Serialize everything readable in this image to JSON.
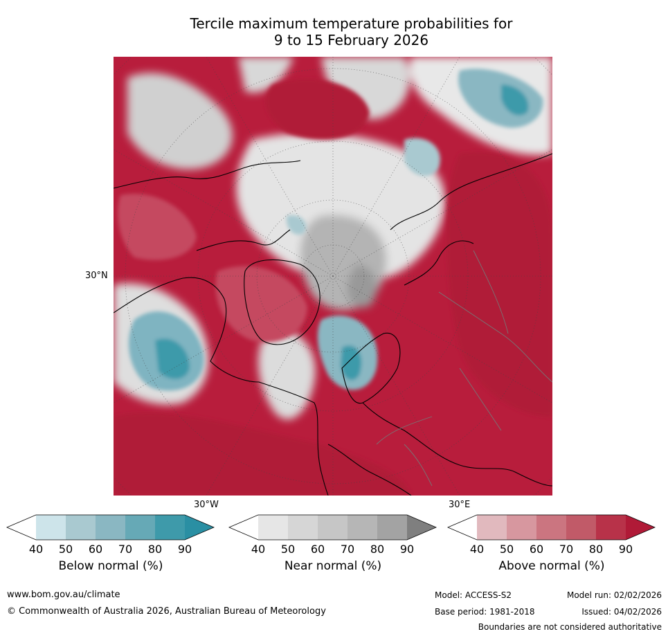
{
  "title_line1": "Tercile maximum temperature probabilities for",
  "title_line2": "9 to 15 February 2026",
  "map": {
    "lat_label": "30°N",
    "lon_label_left": "30°W",
    "lon_label_right": "30°E"
  },
  "colorbars": [
    {
      "label": "Below normal (%)",
      "ticks": [
        "40",
        "50",
        "60",
        "70",
        "80",
        "90"
      ],
      "colors": [
        "#ffffff",
        "#cde4ea",
        "#a9c9d0",
        "#8ab7c2",
        "#66a9b6",
        "#3e9aaa",
        "#2a8fa3"
      ]
    },
    {
      "label": "Near normal (%)",
      "ticks": [
        "40",
        "50",
        "60",
        "70",
        "80",
        "90"
      ],
      "colors": [
        "#ffffff",
        "#e6e6e6",
        "#d6d6d6",
        "#c6c6c6",
        "#b6b6b6",
        "#a3a3a3",
        "#7f7f7f"
      ]
    },
    {
      "label": "Above normal (%)",
      "ticks": [
        "40",
        "50",
        "60",
        "70",
        "80",
        "90"
      ],
      "colors": [
        "#ffffff",
        "#e1b9be",
        "#d7979f",
        "#cb7580",
        "#c15a68",
        "#b83249",
        "#b01a37"
      ]
    }
  ],
  "footer": {
    "website": "www.bom.gov.au/climate",
    "copyright": "© Commonwealth of Australia 2026, Australian Bureau of Meteorology",
    "model": "Model: ACCESS-S2",
    "base_period": "Base period: 1981-2018",
    "model_run": "Model run: 02/02/2026",
    "issued": "Issued: 04/02/2026",
    "disclaimer": "Boundaries are not considered authoritative"
  }
}
